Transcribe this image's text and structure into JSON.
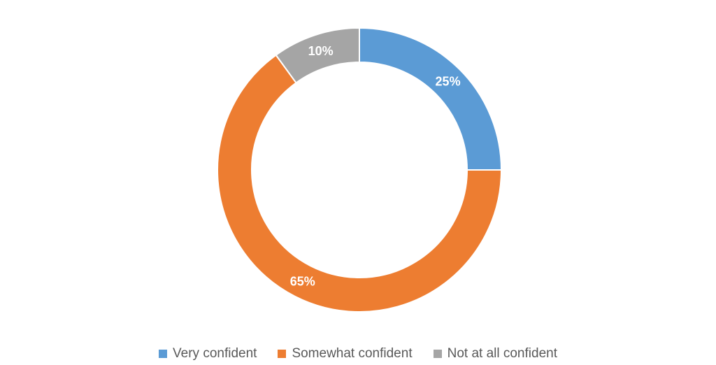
{
  "chart_data": {
    "type": "pie",
    "variant": "doughnut",
    "title": "",
    "categories": [
      "Very confident",
      "Somewhat confident",
      "Not at all confident"
    ],
    "values": [
      25,
      65,
      10
    ],
    "data_labels": [
      "25%",
      "65%",
      "10%"
    ],
    "colors": [
      "#5B9BD5",
      "#ED7D31",
      "#A5A5A5"
    ],
    "legend": "bottom",
    "start_angle_deg": 0,
    "direction": "clockwise"
  },
  "legend": {
    "items": [
      {
        "label": "Very confident",
        "color": "#5B9BD5"
      },
      {
        "label": "Somewhat confident",
        "color": "#ED7D31"
      },
      {
        "label": "Not at all confident",
        "color": "#A5A5A5"
      }
    ]
  }
}
